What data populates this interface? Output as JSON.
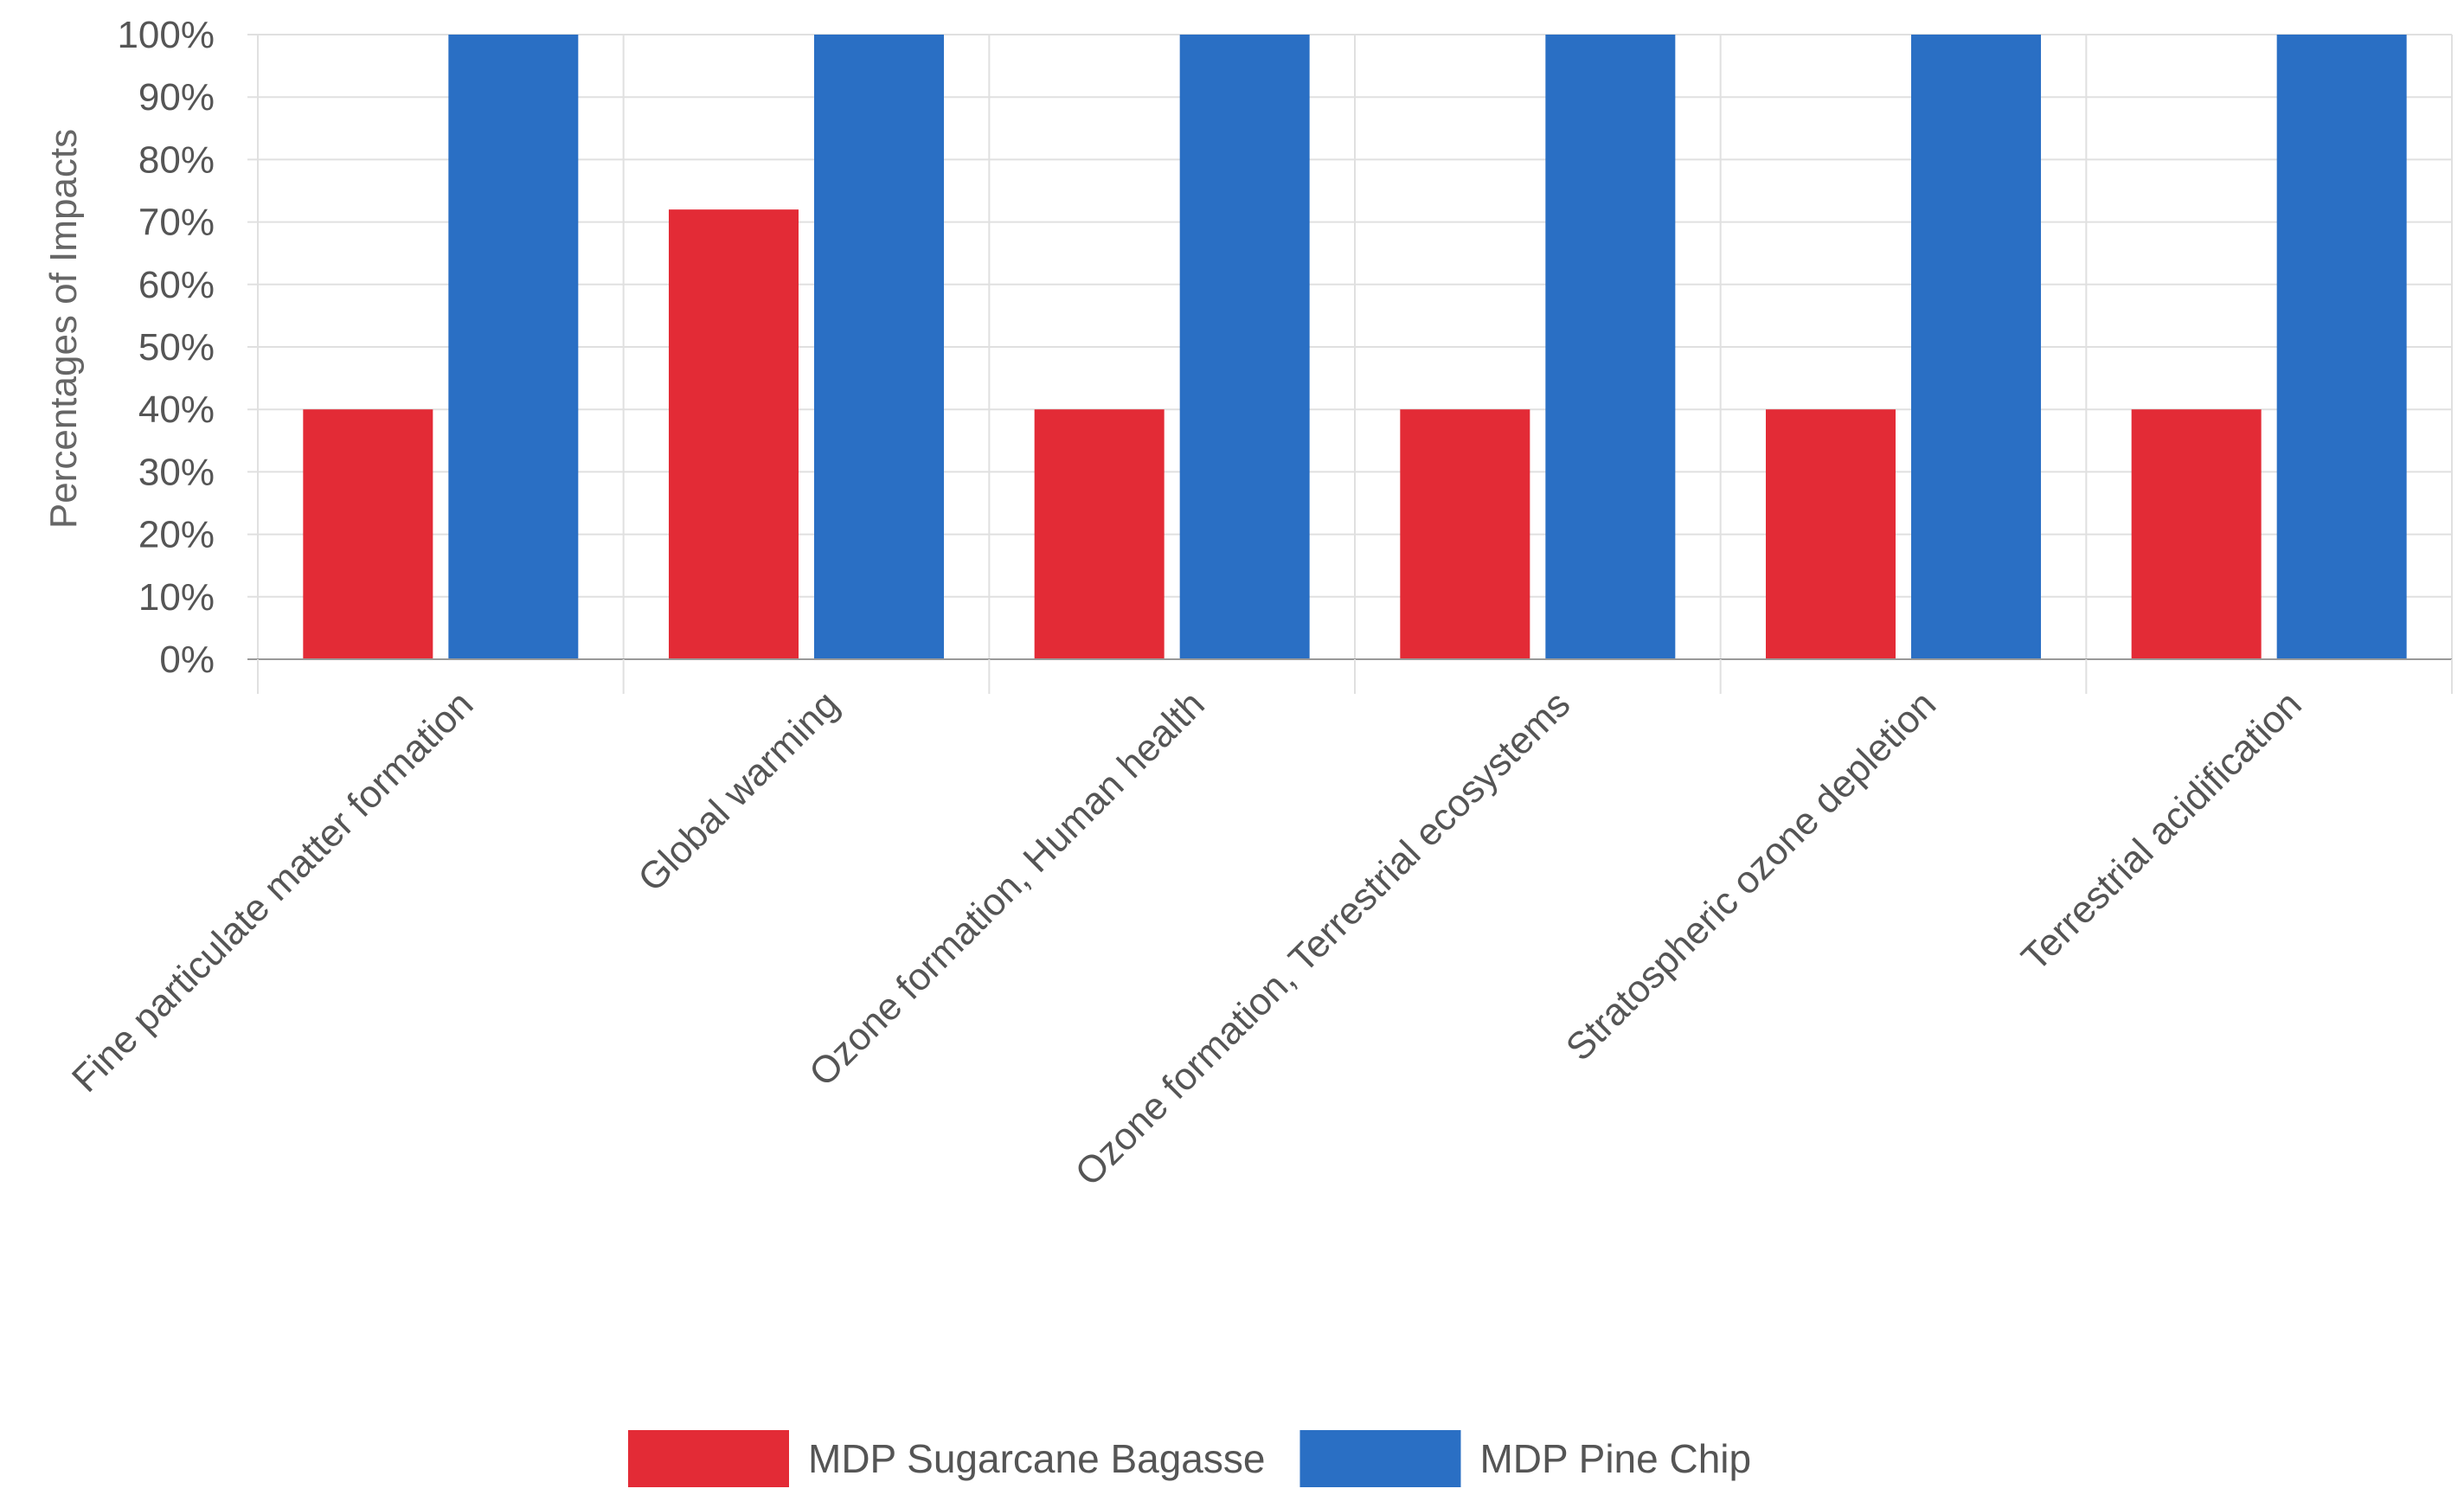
{
  "chart_data": {
    "type": "bar",
    "title": "",
    "xlabel": "",
    "ylabel": "Percentages of Impacts",
    "ylim": [
      0,
      100
    ],
    "ytick_step": 10,
    "ytick_suffix": "%",
    "categories": [
      "Fine particulate matter formation",
      "Global warming",
      "Ozone formation, Human health",
      "Ozone formation, Terrestrial ecosystems",
      "Stratospheric ozone depletion",
      "Terrestrial acidification"
    ],
    "series": [
      {
        "name": "MDP Sugarcane Bagasse",
        "color": "#e32b36",
        "values": [
          40,
          72,
          40,
          40,
          40,
          40
        ]
      },
      {
        "name": "MDP Pine Chip",
        "color": "#2a6fc4",
        "values": [
          100,
          100,
          100,
          100,
          100,
          100
        ]
      }
    ],
    "legend_position": "bottom-center",
    "grid": true
  }
}
